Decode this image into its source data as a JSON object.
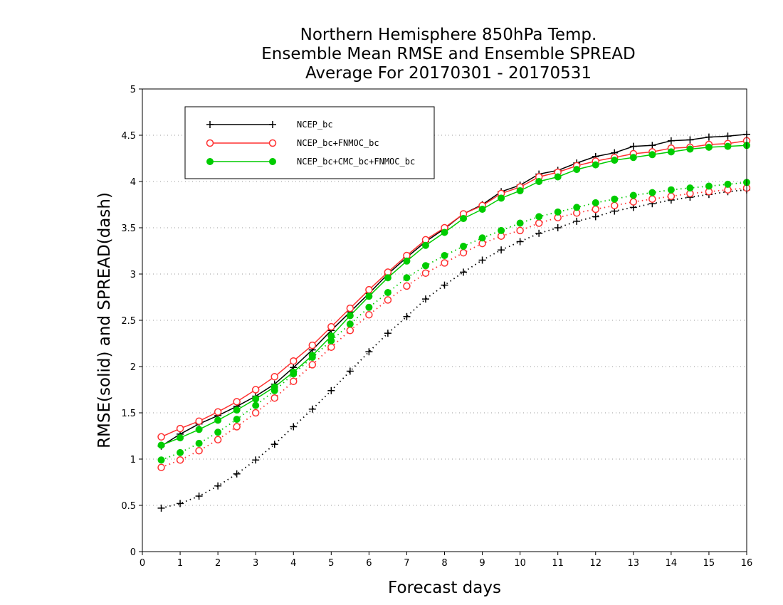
{
  "chart_data": {
    "type": "line",
    "title": "Northern Hemisphere 850hPa Temp.",
    "subtitle_1": "Ensemble Mean RMSE and Ensemble SPREAD",
    "subtitle_2": "Average For 20170301 - 20170531",
    "xlabel": "Forecast days",
    "ylabel": "RMSE(solid) and SPREAD(dash)",
    "xlim": [
      0,
      16
    ],
    "ylim": [
      0,
      5
    ],
    "xticks": [
      "0",
      "1",
      "2",
      "3",
      "4",
      "5",
      "6",
      "7",
      "8",
      "9",
      "10",
      "11",
      "12",
      "13",
      "14",
      "15",
      "16"
    ],
    "yticks": [
      "0",
      "0.5",
      "1",
      "1.5",
      "2",
      "2.5",
      "3",
      "3.5",
      "4",
      "4.5",
      "5"
    ],
    "grid": true,
    "legend_position": "top-left",
    "x": [
      0.5,
      1,
      1.5,
      2,
      2.5,
      3,
      3.5,
      4,
      4.5,
      5,
      5.5,
      6,
      6.5,
      7,
      7.5,
      8,
      8.5,
      9,
      9.5,
      10,
      10.5,
      11,
      11.5,
      12,
      12.5,
      13,
      13.5,
      14,
      14.5,
      15,
      15.5,
      16
    ],
    "series": [
      {
        "name": "NCEP_bc",
        "color": "#000000",
        "marker": "plus",
        "rmse": [
          1.14,
          1.27,
          1.38,
          1.47,
          1.57,
          1.68,
          1.81,
          1.99,
          2.18,
          2.39,
          2.59,
          2.79,
          3.0,
          3.18,
          3.35,
          3.49,
          3.65,
          3.75,
          3.89,
          3.96,
          4.08,
          4.12,
          4.2,
          4.27,
          4.31,
          4.38,
          4.39,
          4.44,
          4.45,
          4.48,
          4.49,
          4.51
        ],
        "spread": [
          0.47,
          0.52,
          0.6,
          0.71,
          0.84,
          0.99,
          1.16,
          1.35,
          1.54,
          1.74,
          1.95,
          2.16,
          2.36,
          2.54,
          2.73,
          2.88,
          3.02,
          3.15,
          3.26,
          3.35,
          3.44,
          3.5,
          3.57,
          3.62,
          3.68,
          3.72,
          3.76,
          3.8,
          3.83,
          3.86,
          3.89,
          3.91
        ]
      },
      {
        "name": "NCEP_bc+FNMOC_bc",
        "color": "#ff3030",
        "marker": "open-circle",
        "rmse": [
          1.24,
          1.33,
          1.41,
          1.51,
          1.62,
          1.75,
          1.89,
          2.06,
          2.23,
          2.43,
          2.63,
          2.83,
          3.02,
          3.2,
          3.37,
          3.5,
          3.65,
          3.74,
          3.87,
          3.94,
          4.05,
          4.1,
          4.17,
          4.22,
          4.26,
          4.3,
          4.32,
          4.36,
          4.37,
          4.4,
          4.41,
          4.44
        ],
        "spread": [
          0.91,
          0.99,
          1.09,
          1.21,
          1.35,
          1.5,
          1.66,
          1.84,
          2.02,
          2.21,
          2.39,
          2.56,
          2.72,
          2.87,
          3.01,
          3.12,
          3.23,
          3.33,
          3.41,
          3.47,
          3.55,
          3.61,
          3.66,
          3.7,
          3.74,
          3.78,
          3.81,
          3.84,
          3.87,
          3.89,
          3.91,
          3.93
        ]
      },
      {
        "name": "NCEP_bc+CMC_bc+FNMOC_bc",
        "color": "#00cc00",
        "marker": "filled-circle",
        "rmse": [
          1.15,
          1.23,
          1.32,
          1.42,
          1.53,
          1.65,
          1.78,
          1.94,
          2.12,
          2.33,
          2.55,
          2.76,
          2.96,
          3.14,
          3.31,
          3.45,
          3.6,
          3.7,
          3.82,
          3.9,
          4.0,
          4.05,
          4.13,
          4.18,
          4.23,
          4.26,
          4.29,
          4.32,
          4.35,
          4.37,
          4.38,
          4.39
        ],
        "spread": [
          0.99,
          1.07,
          1.17,
          1.29,
          1.43,
          1.58,
          1.74,
          1.92,
          2.1,
          2.28,
          2.46,
          2.64,
          2.8,
          2.96,
          3.09,
          3.2,
          3.3,
          3.39,
          3.47,
          3.55,
          3.62,
          3.67,
          3.72,
          3.77,
          3.81,
          3.85,
          3.88,
          3.91,
          3.93,
          3.95,
          3.97,
          3.99
        ]
      }
    ]
  }
}
